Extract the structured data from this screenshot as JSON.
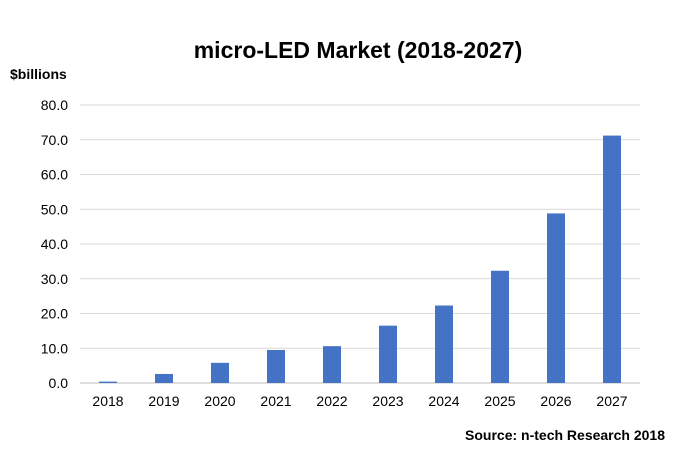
{
  "chart_data": {
    "type": "bar",
    "title": "micro-LED Market (2018-2027)",
    "ylabel": "$billions",
    "xlabel": "",
    "categories": [
      "2018",
      "2019",
      "2020",
      "2021",
      "2022",
      "2023",
      "2024",
      "2025",
      "2026",
      "2027"
    ],
    "values": [
      0.4,
      2.6,
      5.8,
      9.5,
      10.6,
      16.5,
      22.3,
      32.3,
      48.8,
      71.2
    ],
    "ylim": [
      0,
      80
    ],
    "yticks": [
      "0.0",
      "10.0",
      "20.0",
      "30.0",
      "40.0",
      "50.0",
      "60.0",
      "70.0",
      "80.0"
    ],
    "grid": true,
    "bar_color": "#4472c4",
    "source": "Source: n-tech Research 2018"
  }
}
